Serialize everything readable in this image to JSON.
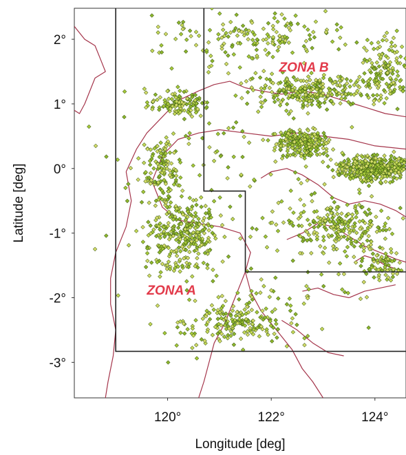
{
  "map": {
    "axes": {
      "xlabel": "Longitude [deg]",
      "ylabel": "Latitude [deg]",
      "x_ticks": [
        {
          "value": 120,
          "label": "120°"
        },
        {
          "value": 122,
          "label": "122°"
        },
        {
          "value": 124,
          "label": "124°"
        }
      ],
      "y_ticks": [
        {
          "value": 2,
          "label": "2°"
        },
        {
          "value": 1,
          "label": "1°"
        },
        {
          "value": 0,
          "label": "0°"
        },
        {
          "value": -1,
          "label": "-1°"
        },
        {
          "value": -2,
          "label": "-2°"
        },
        {
          "value": -3,
          "label": "-3°"
        }
      ],
      "x_range": [
        118.2,
        124.6
      ],
      "y_range": [
        -3.55,
        2.48
      ]
    },
    "zones": [
      {
        "label": "ZONA A",
        "label_lon": 119.6,
        "label_lat": -1.95,
        "polygon": [
          [
            119.0,
            2.48
          ],
          [
            119.0,
            -2.83
          ],
          [
            124.6,
            -2.83
          ]
        ]
      },
      {
        "label": "ZONA B",
        "label_lon": 122.15,
        "label_lat": 1.5,
        "polygon": [
          [
            120.7,
            2.48
          ],
          [
            120.7,
            -0.35
          ],
          [
            121.5,
            -0.35
          ],
          [
            121.5,
            -1.6
          ],
          [
            124.6,
            -1.6
          ]
        ]
      }
    ],
    "colors": {
      "coastline": "#a4344a",
      "event_fill": "#a7c93a",
      "event_edge": "#3a5a10",
      "boundary": "#222222",
      "zone_label": "#e23a4a"
    },
    "coastlines": [
      [
        [
          118.2,
          2.2
        ],
        [
          118.4,
          2.0
        ],
        [
          118.6,
          1.9
        ],
        [
          118.7,
          1.7
        ],
        [
          118.8,
          1.5
        ],
        [
          118.6,
          1.4
        ],
        [
          118.5,
          1.2
        ],
        [
          118.4,
          1.0
        ],
        [
          118.3,
          0.85
        ],
        [
          118.2,
          0.9
        ]
      ],
      [
        [
          119.2,
          -0.05
        ],
        [
          119.4,
          0.3
        ],
        [
          119.6,
          0.55
        ],
        [
          119.9,
          0.8
        ],
        [
          120.2,
          1.05
        ],
        [
          120.6,
          1.2
        ],
        [
          120.9,
          1.3
        ],
        [
          121.2,
          1.35
        ],
        [
          121.5,
          1.25
        ],
        [
          121.8,
          1.2
        ],
        [
          122.2,
          1.15
        ],
        [
          122.6,
          1.2
        ],
        [
          123.0,
          1.15
        ],
        [
          123.4,
          1.05
        ],
        [
          123.8,
          0.95
        ],
        [
          124.2,
          0.85
        ],
        [
          124.6,
          0.8
        ]
      ],
      [
        [
          119.2,
          -0.05
        ],
        [
          119.3,
          -0.5
        ],
        [
          119.2,
          -0.9
        ],
        [
          119.0,
          -1.3
        ],
        [
          118.9,
          -1.7
        ],
        [
          118.9,
          -2.1
        ],
        [
          119.0,
          -2.5
        ],
        [
          118.95,
          -2.9
        ],
        [
          118.85,
          -3.3
        ],
        [
          118.8,
          -3.55
        ]
      ],
      [
        [
          119.7,
          -0.2
        ],
        [
          119.9,
          0.2
        ],
        [
          120.2,
          0.45
        ],
        [
          120.6,
          0.55
        ],
        [
          121.0,
          0.6
        ],
        [
          121.5,
          0.55
        ],
        [
          122.0,
          0.5
        ],
        [
          122.5,
          0.55
        ],
        [
          123.0,
          0.5
        ],
        [
          123.5,
          0.45
        ],
        [
          124.0,
          0.35
        ],
        [
          124.6,
          0.3
        ]
      ],
      [
        [
          119.7,
          -0.2
        ],
        [
          119.9,
          -0.6
        ],
        [
          120.2,
          -0.8
        ],
        [
          120.6,
          -0.85
        ],
        [
          121.0,
          -0.9
        ],
        [
          121.4,
          -1.0
        ],
        [
          121.6,
          -1.3
        ],
        [
          121.5,
          -1.6
        ]
      ],
      [
        [
          121.5,
          -1.6
        ],
        [
          121.6,
          -1.9
        ],
        [
          121.8,
          -2.2
        ],
        [
          122.1,
          -2.5
        ],
        [
          122.4,
          -2.8
        ],
        [
          122.6,
          -3.1
        ],
        [
          122.8,
          -3.3
        ],
        [
          123.0,
          -3.55
        ]
      ],
      [
        [
          121.5,
          -1.6
        ],
        [
          121.3,
          -2.0
        ],
        [
          121.1,
          -2.4
        ],
        [
          120.9,
          -2.7
        ],
        [
          120.8,
          -3.0
        ],
        [
          120.7,
          -3.3
        ],
        [
          120.6,
          -3.55
        ]
      ],
      [
        [
          121.8,
          -0.15
        ],
        [
          122.0,
          -0.05
        ],
        [
          122.3,
          0.0
        ],
        [
          122.6,
          -0.1
        ],
        [
          122.9,
          -0.25
        ],
        [
          123.2,
          -0.45
        ],
        [
          123.5,
          -0.55
        ],
        [
          123.8,
          -0.5
        ],
        [
          124.1,
          -0.55
        ],
        [
          124.4,
          -0.65
        ],
        [
          124.6,
          -0.75
        ]
      ],
      [
        [
          122.3,
          -1.1
        ],
        [
          122.6,
          -1.0
        ],
        [
          122.9,
          -0.85
        ],
        [
          123.2,
          -0.9
        ],
        [
          123.5,
          -1.05
        ],
        [
          123.8,
          -1.2
        ],
        [
          124.1,
          -1.3
        ],
        [
          124.4,
          -1.4
        ],
        [
          124.6,
          -1.45
        ]
      ],
      [
        [
          123.6,
          -1.45
        ],
        [
          123.8,
          -1.35
        ],
        [
          124.0,
          -1.4
        ],
        [
          124.2,
          -1.5
        ],
        [
          124.4,
          -1.55
        ]
      ],
      [
        [
          122.6,
          -1.9
        ],
        [
          122.9,
          -1.85
        ],
        [
          123.2,
          -1.95
        ],
        [
          123.5,
          -2.0
        ],
        [
          123.8,
          -1.9
        ],
        [
          124.1,
          -1.85
        ],
        [
          124.4,
          -1.8
        ]
      ],
      [
        [
          122.2,
          -2.35
        ],
        [
          122.5,
          -2.5
        ],
        [
          122.8,
          -2.7
        ],
        [
          123.1,
          -2.85
        ],
        [
          123.4,
          -2.9
        ]
      ]
    ]
  }
}
